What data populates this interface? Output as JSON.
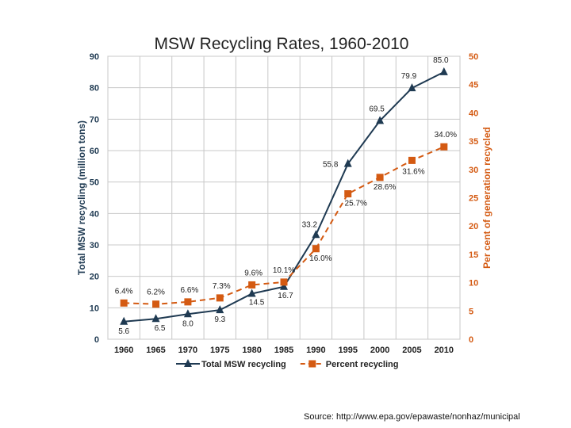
{
  "chart_data": {
    "type": "line",
    "title": "MSW Recycling Rates, 1960-2010",
    "categories": [
      "1960",
      "1965",
      "1970",
      "1975",
      "1980",
      "1985",
      "1990",
      "1995",
      "2000",
      "2005",
      "2010"
    ],
    "y_left": {
      "label": "Total MSW recycling (million tons)",
      "range": [
        0,
        90
      ],
      "ticks": [
        "0",
        "10",
        "20",
        "30",
        "40",
        "50",
        "60",
        "70",
        "80",
        "90"
      ]
    },
    "y_right": {
      "label": "Per cent of generation recycled",
      "range": [
        0,
        50
      ],
      "ticks": [
        "0",
        "5",
        "10",
        "15",
        "20",
        "25",
        "30",
        "35",
        "40",
        "45",
        "50"
      ]
    },
    "grid": true,
    "legend_position": "bottom",
    "series": [
      {
        "name": "Total MSW recycling",
        "axis": "left",
        "color": "#1f3a52",
        "marker": "triangle",
        "line_style": "solid",
        "values": [
          5.6,
          6.5,
          8.0,
          9.3,
          14.5,
          16.7,
          33.2,
          55.8,
          69.5,
          79.9,
          85.0
        ],
        "labels": [
          "5.6",
          "6.5",
          "8.0",
          "9.3",
          "14.5",
          "16.7",
          "33.2",
          "55.8",
          "69.5",
          "79.9",
          "85.0"
        ]
      },
      {
        "name": "Percent recycling",
        "axis": "right",
        "color": "#d45a12",
        "marker": "square",
        "line_style": "dashed",
        "values": [
          6.4,
          6.2,
          6.6,
          7.3,
          9.6,
          10.1,
          16.0,
          25.7,
          28.6,
          31.6,
          34.0
        ],
        "labels": [
          "6.4%",
          "6.2%",
          "6.6%",
          "7.3%",
          "9.6%",
          "10.1%",
          "16.0%",
          "25.7%",
          "28.6%",
          "31.6%",
          "34.0%"
        ]
      }
    ]
  },
  "source_text": "Source: http://www.epa.gov/epawaste/nonhaz/municipal"
}
